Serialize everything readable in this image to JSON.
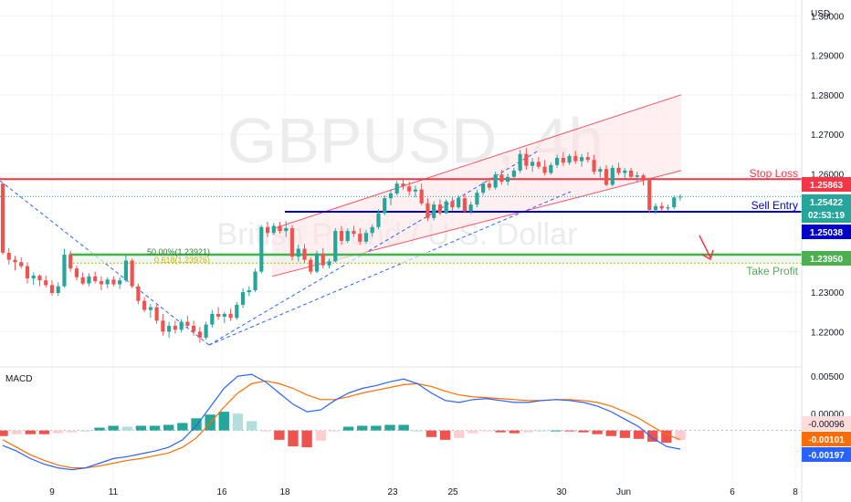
{
  "header": {
    "currency": "USD"
  },
  "watermark": {
    "symbol": "GBPUSD, 4h",
    "name": "British Pound / U.S. Dollar"
  },
  "colors": {
    "up": "#26a69a",
    "down": "#ef5350",
    "stop": "#f23645",
    "entry": "#0000c8",
    "profit": "#4caf50",
    "macd": "#2962ff",
    "signal": "#ff6d00",
    "channel": "#f7525f",
    "channel_fill": "#fde2e4",
    "fib": "#00c853",
    "grid": "#f0f3fa",
    "axis_text": "#131722"
  },
  "annotations": {
    "stop_loss": {
      "label": "Stop Loss",
      "price": "1.25863"
    },
    "sell_entry": {
      "label": "Sell Entry",
      "price": "1.25038"
    },
    "take_profit": {
      "label": "Take Profit",
      "price": "1.23950"
    },
    "current": {
      "price": "1.25422",
      "countdown": "02:53:19"
    },
    "fib50": {
      "label": "50.00%(1.23921)"
    },
    "fib618": {
      "label": "0.618(1.23976)"
    }
  },
  "macd": {
    "label": "MACD",
    "ticks": [
      "0.00500",
      "0.00000"
    ],
    "tags": {
      "hist": "-0.00096",
      "signal": "-0.00101",
      "macd": "-0.00197"
    }
  },
  "chart_data": {
    "type": "candlestick",
    "symbol": "GBPUSD",
    "timeframe": "4h",
    "y_label": "USD",
    "ylim": [
      1.212,
      1.304
    ],
    "y_ticks": [
      "1.30000",
      "1.29000",
      "1.28000",
      "1.27000",
      "1.26000",
      "1.23000",
      "1.22000"
    ],
    "x_ticks": [
      "9",
      "11",
      "16",
      "18",
      "23",
      "25",
      "30",
      "Jun",
      "6",
      "8"
    ],
    "levels": {
      "stop_loss": 1.25863,
      "sell_entry": 1.25038,
      "take_profit": 1.2395,
      "current": 1.25422,
      "fib_50": 1.23921,
      "fib_618": 1.23976
    },
    "candles": [
      [
        1.2575,
        1.2575,
        1.2395,
        1.24
      ],
      [
        1.24,
        1.2412,
        1.237,
        1.2382
      ],
      [
        1.2382,
        1.2392,
        1.2355,
        1.2376
      ],
      [
        1.2376,
        1.2388,
        1.236,
        1.2366
      ],
      [
        1.2366,
        1.2376,
        1.2322,
        1.2335
      ],
      [
        1.2335,
        1.235,
        1.2318,
        1.2342
      ],
      [
        1.2342,
        1.2345,
        1.2315,
        1.233
      ],
      [
        1.233,
        1.2342,
        1.2312,
        1.2318
      ],
      [
        1.2318,
        1.233,
        1.2292,
        1.2298
      ],
      [
        1.2298,
        1.2325,
        1.229,
        1.2315
      ],
      [
        1.2315,
        1.241,
        1.2312,
        1.2395
      ],
      [
        1.2395,
        1.2405,
        1.2352,
        1.236
      ],
      [
        1.236,
        1.2368,
        1.233,
        1.2338
      ],
      [
        1.2338,
        1.235,
        1.2318,
        1.2322
      ],
      [
        1.2322,
        1.2348,
        1.2315,
        1.234
      ],
      [
        1.234,
        1.2352,
        1.2322,
        1.2328
      ],
      [
        1.2328,
        1.234,
        1.2305,
        1.232
      ],
      [
        1.232,
        1.2338,
        1.231,
        1.2332
      ],
      [
        1.2332,
        1.234,
        1.2315,
        1.232
      ],
      [
        1.232,
        1.2338,
        1.2308,
        1.233
      ],
      [
        1.233,
        1.2395,
        1.2325,
        1.238
      ],
      [
        1.238,
        1.2385,
        1.231,
        1.2315
      ],
      [
        1.2315,
        1.2322,
        1.227,
        1.2278
      ],
      [
        1.2278,
        1.2288,
        1.225,
        1.2255
      ],
      [
        1.2255,
        1.227,
        1.2235,
        1.2262
      ],
      [
        1.2262,
        1.2268,
        1.222,
        1.2228
      ],
      [
        1.2228,
        1.2245,
        1.219,
        1.22
      ],
      [
        1.22,
        1.2225,
        1.2185,
        1.2215
      ],
      [
        1.2215,
        1.2228,
        1.2195,
        1.2205
      ],
      [
        1.2205,
        1.2232,
        1.2198,
        1.2225
      ],
      [
        1.2225,
        1.224,
        1.2208,
        1.2215
      ],
      [
        1.2215,
        1.2228,
        1.219,
        1.22
      ],
      [
        1.22,
        1.2212,
        1.2172,
        1.2185
      ],
      [
        1.2185,
        1.2225,
        1.218,
        1.2218
      ],
      [
        1.2218,
        1.2255,
        1.221,
        1.2245
      ],
      [
        1.2245,
        1.2262,
        1.223,
        1.2238
      ],
      [
        1.2238,
        1.225,
        1.2222,
        1.2245
      ],
      [
        1.2245,
        1.2258,
        1.2228,
        1.2235
      ],
      [
        1.2235,
        1.2275,
        1.223,
        1.2268
      ],
      [
        1.2268,
        1.231,
        1.226,
        1.23
      ],
      [
        1.23,
        1.2315,
        1.229,
        1.2305
      ],
      [
        1.2305,
        1.236,
        1.23,
        1.2352
      ],
      [
        1.2352,
        1.247,
        1.2348,
        1.2465
      ],
      [
        1.2465,
        1.2478,
        1.244,
        1.245
      ],
      [
        1.245,
        1.2475,
        1.2445,
        1.2468
      ],
      [
        1.2468,
        1.2478,
        1.2448,
        1.2455
      ],
      [
        1.2455,
        1.248,
        1.244,
        1.2462
      ],
      [
        1.2462,
        1.247,
        1.238,
        1.239
      ],
      [
        1.239,
        1.242,
        1.2378,
        1.241
      ],
      [
        1.241,
        1.2422,
        1.2375,
        1.2382
      ],
      [
        1.2382,
        1.2388,
        1.2345,
        1.2352
      ],
      [
        1.2352,
        1.2405,
        1.2348,
        1.2398
      ],
      [
        1.2398,
        1.2412,
        1.236,
        1.2368
      ],
      [
        1.2368,
        1.2385,
        1.236,
        1.2378
      ],
      [
        1.2378,
        1.2462,
        1.2375,
        1.2455
      ],
      [
        1.2455,
        1.2468,
        1.242,
        1.243
      ],
      [
        1.243,
        1.2462,
        1.2425,
        1.2455
      ],
      [
        1.2455,
        1.2468,
        1.244,
        1.2448
      ],
      [
        1.2448,
        1.2462,
        1.242,
        1.2428
      ],
      [
        1.2428,
        1.2458,
        1.2422,
        1.245
      ],
      [
        1.245,
        1.2472,
        1.244,
        1.2465
      ],
      [
        1.2465,
        1.251,
        1.246,
        1.25
      ],
      [
        1.25,
        1.2545,
        1.2495,
        1.2538
      ],
      [
        1.2538,
        1.256,
        1.252,
        1.255
      ],
      [
        1.255,
        1.2582,
        1.2545,
        1.2575
      ],
      [
        1.2575,
        1.259,
        1.256,
        1.2568
      ],
      [
        1.2568,
        1.258,
        1.2545,
        1.2555
      ],
      [
        1.2555,
        1.257,
        1.254,
        1.256
      ],
      [
        1.256,
        1.2575,
        1.252,
        1.2525
      ],
      [
        1.2525,
        1.2538,
        1.248,
        1.2488
      ],
      [
        1.2488,
        1.253,
        1.2482,
        1.2522
      ],
      [
        1.2522,
        1.2535,
        1.2495,
        1.25
      ],
      [
        1.25,
        1.2535,
        1.2498,
        1.253
      ],
      [
        1.253,
        1.254,
        1.2505,
        1.2515
      ],
      [
        1.2515,
        1.2545,
        1.251,
        1.2538
      ],
      [
        1.2538,
        1.255,
        1.25,
        1.2505
      ],
      [
        1.2505,
        1.253,
        1.2498,
        1.2522
      ],
      [
        1.2522,
        1.256,
        1.2515,
        1.2552
      ],
      [
        1.2552,
        1.258,
        1.2545,
        1.2575
      ],
      [
        1.2575,
        1.259,
        1.2558,
        1.2565
      ],
      [
        1.2565,
        1.2605,
        1.256,
        1.2598
      ],
      [
        1.2598,
        1.261,
        1.2572,
        1.258
      ],
      [
        1.258,
        1.26,
        1.257,
        1.2592
      ],
      [
        1.2592,
        1.2615,
        1.2585,
        1.2608
      ],
      [
        1.2608,
        1.266,
        1.2602,
        1.265
      ],
      [
        1.265,
        1.2665,
        1.261,
        1.262
      ],
      [
        1.262,
        1.264,
        1.2605,
        1.263
      ],
      [
        1.263,
        1.2642,
        1.2612,
        1.2618
      ],
      [
        1.2618,
        1.2635,
        1.2595,
        1.2602
      ],
      [
        1.2602,
        1.2628,
        1.2598,
        1.2622
      ],
      [
        1.2622,
        1.2648,
        1.2615,
        1.264
      ],
      [
        1.264,
        1.2655,
        1.262,
        1.2628
      ],
      [
        1.2628,
        1.265,
        1.2622,
        1.2645
      ],
      [
        1.2645,
        1.2658,
        1.2625,
        1.2632
      ],
      [
        1.2632,
        1.265,
        1.2618,
        1.2642
      ],
      [
        1.2642,
        1.2655,
        1.2628,
        1.2635
      ],
      [
        1.2635,
        1.2648,
        1.2598,
        1.2605
      ],
      [
        1.2605,
        1.2618,
        1.259,
        1.2612
      ],
      [
        1.2612,
        1.2622,
        1.2568,
        1.2572
      ],
      [
        1.2572,
        1.2622,
        1.2568,
        1.2615
      ],
      [
        1.2615,
        1.2628,
        1.2596,
        1.2602
      ],
      [
        1.2602,
        1.2615,
        1.2588,
        1.2608
      ],
      [
        1.2608,
        1.2615,
        1.2585,
        1.2592
      ],
      [
        1.2592,
        1.2605,
        1.2578,
        1.2596
      ],
      [
        1.2596,
        1.26,
        1.257,
        1.2586
      ],
      [
        1.2586,
        1.259,
        1.25,
        1.2508
      ],
      [
        1.2508,
        1.2525,
        1.2498,
        1.2518
      ],
      [
        1.2518,
        1.2528,
        1.2505,
        1.2512
      ],
      [
        1.2512,
        1.2522,
        1.2505,
        1.2515
      ],
      [
        1.2515,
        1.2545,
        1.251,
        1.254
      ],
      [
        1.254,
        1.2548,
        1.2532,
        1.2542
      ]
    ],
    "channel": {
      "upper": [
        [
          1.246,
          1.28
        ]
      ],
      "lower": [
        [
          1.234,
          1.2608
        ]
      ]
    },
    "macd_line": [
      -0.0016,
      -0.0022,
      -0.003,
      -0.0036,
      -0.004,
      -0.0042,
      -0.004,
      -0.0035,
      -0.003,
      -0.0028,
      -0.0025,
      -0.0022,
      -0.0018,
      -0.001,
      0.0005,
      0.0025,
      0.0045,
      0.0058,
      0.006,
      0.0052,
      0.004,
      0.0028,
      0.002,
      0.0022,
      0.0032,
      0.004,
      0.0045,
      0.0048,
      0.0052,
      0.0055,
      0.005,
      0.004,
      0.0032,
      0.003,
      0.0033,
      0.0034,
      0.0032,
      0.003,
      0.003,
      0.0032,
      0.0033,
      0.0032,
      0.003,
      0.0026,
      0.002,
      0.0012,
      0.0004,
      -0.0008,
      -0.0017,
      -0.002
    ],
    "signal_line": [
      -0.001,
      -0.0018,
      -0.0026,
      -0.0032,
      -0.0037,
      -0.004,
      -0.004,
      -0.0038,
      -0.0035,
      -0.0032,
      -0.003,
      -0.0027,
      -0.0024,
      -0.0018,
      -0.0008,
      0.0008,
      0.0025,
      0.004,
      0.005,
      0.0053,
      0.005,
      0.0045,
      0.0038,
      0.0033,
      0.0033,
      0.0036,
      0.004,
      0.0043,
      0.0046,
      0.0049,
      0.005,
      0.0047,
      0.0042,
      0.0038,
      0.0036,
      0.0035,
      0.0034,
      0.0033,
      0.0032,
      0.0032,
      0.0033,
      0.0033,
      0.0032,
      0.003,
      0.0026,
      0.002,
      0.0013,
      0.0004,
      -0.0004,
      -0.001
    ],
    "histogram": [
      -0.0006,
      -0.0004,
      -0.0004,
      -0.0004,
      -0.0003,
      -0.0002,
      0.0,
      0.0003,
      0.0005,
      0.0004,
      0.0005,
      0.0005,
      0.0006,
      0.0008,
      0.0013,
      0.0017,
      0.002,
      0.0018,
      0.001,
      -0.0001,
      -0.001,
      -0.0017,
      -0.0018,
      -0.0011,
      -0.0001,
      0.0004,
      0.0005,
      0.0005,
      0.0006,
      0.0006,
      0.0,
      -0.0007,
      -0.001,
      -0.0008,
      -0.0003,
      -0.0001,
      -0.0002,
      -0.0003,
      -0.0002,
      0.0,
      0.0,
      -0.0001,
      -0.0002,
      -0.0004,
      -0.0006,
      -0.0008,
      -0.0009,
      -0.0012,
      -0.0013,
      -0.001
    ]
  }
}
